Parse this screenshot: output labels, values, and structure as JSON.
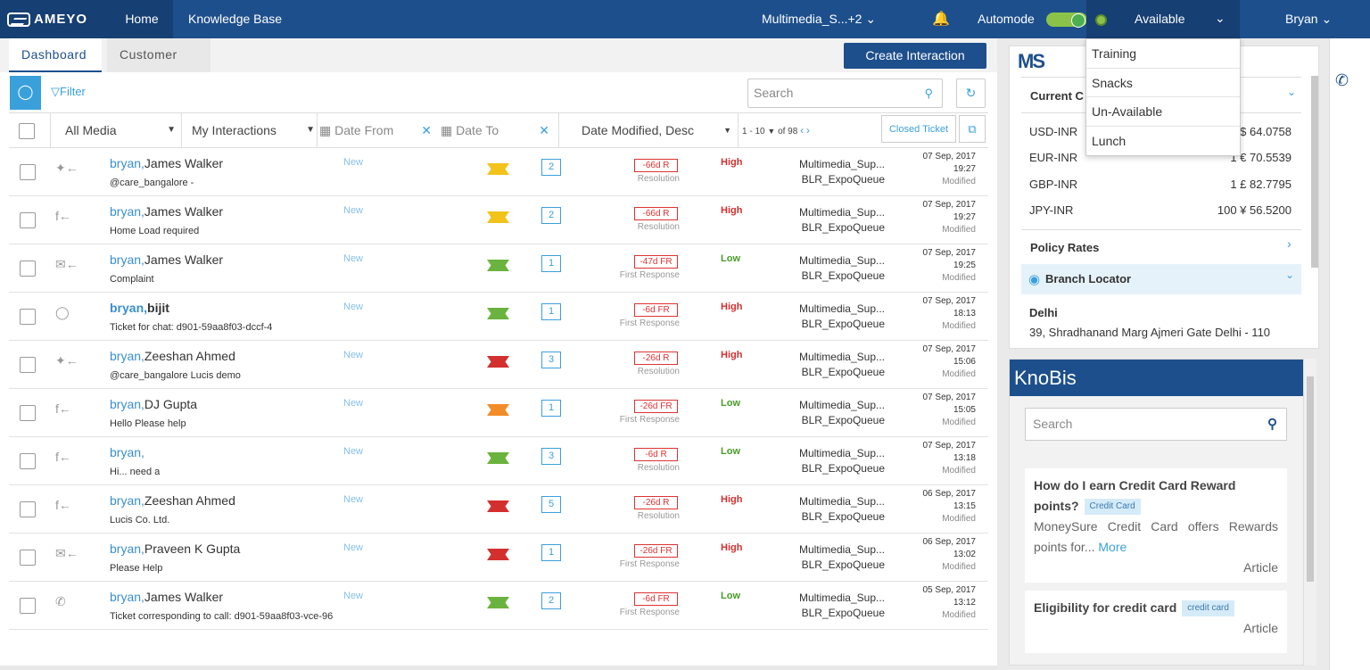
{
  "topbar": {
    "logo": "AMEYO",
    "home": "Home",
    "knowledge_base": "Knowledge Base",
    "queue": "Multimedia_S...+2",
    "automode": "Automode",
    "status": "Available",
    "user": "Bryan"
  },
  "status_menu": [
    "Training",
    "Snacks",
    "Un-Available",
    "Lunch"
  ],
  "tabs": {
    "dashboard": "Dashboard",
    "customer": "Customer"
  },
  "create_button": "Create Interaction",
  "filter_label": "Filter",
  "search_placeholder": "Search",
  "filters": {
    "media": "All Media",
    "interactions": "My Interactions",
    "date_from": "Date From",
    "date_to": "Date To",
    "sort": "Date Modified, Desc",
    "paging": "1 - 10",
    "of_total": "of 98",
    "closed": "Closed Ticket"
  },
  "rows": [
    {
      "channel": "twitter",
      "me": "bryan,",
      "name": "James Walker",
      "bold": false,
      "sub": "@care_bangalore -",
      "status": "New",
      "flag": "#f2c31b",
      "count": "2",
      "sla": "-66d R",
      "sla_type": "Resolution",
      "priority": "High",
      "queue": "Multimedia_Sup...",
      "queue2": "BLR_ExpoQueue",
      "date": "07 Sep, 2017",
      "time": "19:27",
      "mod": "Modified"
    },
    {
      "channel": "facebook",
      "me": "bryan,",
      "name": "James Walker",
      "bold": false,
      "sub": "Home Load required",
      "status": "New",
      "flag": "#f2c31b",
      "count": "2",
      "sla": "-66d R",
      "sla_type": "Resolution",
      "priority": "High",
      "queue": "Multimedia_Sup...",
      "queue2": "BLR_ExpoQueue",
      "date": "07 Sep, 2017",
      "time": "19:27",
      "mod": "Modified"
    },
    {
      "channel": "email",
      "me": "bryan,",
      "name": "James Walker",
      "bold": false,
      "sub": "Complaint",
      "status": "New",
      "flag": "#6ab33e",
      "count": "1",
      "sla": "-47d FR",
      "sla_type": "First Response",
      "priority": "Low",
      "queue": "Multimedia_Sup...",
      "queue2": "BLR_ExpoQueue",
      "date": "07 Sep, 2017",
      "time": "19:25",
      "mod": "Modified"
    },
    {
      "channel": "chat",
      "me": "bryan,",
      "name": "bijit",
      "bold": true,
      "sub": "Ticket for chat: d901-59aa8f03-dccf-4",
      "status": "New",
      "flag": "#6ab33e",
      "count": "1",
      "sla": "-6d FR",
      "sla_type": "First Response",
      "priority": "High",
      "queue": "Multimedia_Sup...",
      "queue2": "BLR_ExpoQueue",
      "date": "07 Sep, 2017",
      "time": "18:13",
      "mod": "Modified"
    },
    {
      "channel": "twitter",
      "me": "bryan,",
      "name": "Zeeshan Ahmed",
      "bold": false,
      "sub": "@care_bangalore Lucis demo",
      "status": "New",
      "flag": "#d32f2f",
      "count": "3",
      "sla": "-26d R",
      "sla_type": "Resolution",
      "priority": "High",
      "queue": "Multimedia_Sup...",
      "queue2": "BLR_ExpoQueue",
      "date": "07 Sep, 2017",
      "time": "15:06",
      "mod": "Modified"
    },
    {
      "channel": "facebook",
      "me": "bryan,",
      "name": "DJ Gupta",
      "bold": false,
      "sub": "Hello Please help",
      "status": "New",
      "flag": "#f28c28",
      "count": "1",
      "sla": "-26d FR",
      "sla_type": "First Response",
      "priority": "Low",
      "queue": "Multimedia_Sup...",
      "queue2": "BLR_ExpoQueue",
      "date": "07 Sep, 2017",
      "time": "15:05",
      "mod": "Modified"
    },
    {
      "channel": "facebook",
      "me": "bryan,",
      "name": "",
      "bold": false,
      "sub": "Hi... need a",
      "status": "New",
      "flag": "#6ab33e",
      "count": "3",
      "sla": "-6d R",
      "sla_type": "Resolution",
      "priority": "Low",
      "queue": "Multimedia_Sup...",
      "queue2": "BLR_ExpoQueue",
      "date": "07 Sep, 2017",
      "time": "13:18",
      "mod": "Modified"
    },
    {
      "channel": "facebook",
      "me": "bryan,",
      "name": "Zeeshan Ahmed",
      "bold": false,
      "sub": "Lucis Co. Ltd.",
      "status": "New",
      "flag": "#d32f2f",
      "count": "5",
      "sla": "-26d R",
      "sla_type": "Resolution",
      "priority": "High",
      "queue": "Multimedia_Sup...",
      "queue2": "BLR_ExpoQueue",
      "date": "06 Sep, 2017",
      "time": "13:15",
      "mod": "Modified"
    },
    {
      "channel": "email",
      "me": "bryan,",
      "name": "Praveen K Gupta",
      "bold": false,
      "sub": "Please Help",
      "status": "New",
      "flag": "#d32f2f",
      "count": "1",
      "sla": "-26d FR",
      "sla_type": "First Response",
      "priority": "High",
      "queue": "Multimedia_Sup...",
      "queue2": "BLR_ExpoQueue",
      "date": "06 Sep, 2017",
      "time": "13:02",
      "mod": "Modified"
    },
    {
      "channel": "call",
      "me": "bryan,",
      "name": "James Walker",
      "bold": false,
      "sub": "Ticket corresponding to call: d901-59aa8f03-vce-96",
      "status": "New",
      "flag": "#6ab33e",
      "count": "2",
      "sla": "-6d FR",
      "sla_type": "First Response",
      "priority": "Low",
      "queue": "Multimedia_Sup...",
      "queue2": "BLR_ExpoQueue",
      "date": "05 Sep, 2017",
      "time": "13:12",
      "mod": "Modified"
    }
  ],
  "colors": {
    "primary": "#1d4f8c",
    "accent": "#3aa0dc",
    "high": "#d32f2f",
    "low": "#4a9a2a"
  },
  "right_panel": {
    "logo_m": "M",
    "logo_s": "S",
    "current_heading": "Current C",
    "rates": [
      {
        "pair": "USD-INR",
        "value": "$ 64.0758"
      },
      {
        "pair": "EUR-INR",
        "value": "1 € 70.5539"
      },
      {
        "pair": "GBP-INR",
        "value": "1 £ 82.7795"
      },
      {
        "pair": "JPY-INR",
        "value": "100 ¥ 56.5200"
      }
    ],
    "policy_rates": "Policy Rates",
    "branch_locator": "Branch Locator",
    "branch_city": "Delhi",
    "branch_address": "39, Shradhanand Marg Ajmeri Gate Delhi - 110"
  },
  "knobis": {
    "title": "KnoBis",
    "search_placeholder": "Search",
    "articles": [
      {
        "title": "How do I earn Credit Card Reward points?",
        "tag": "Credit Card",
        "desc": "MoneySure Credit Card offers Rewards points for...",
        "more": "More",
        "type": "Article"
      },
      {
        "title": "Eligibility for credit card",
        "tag": "credit card",
        "type": "Article"
      }
    ]
  }
}
